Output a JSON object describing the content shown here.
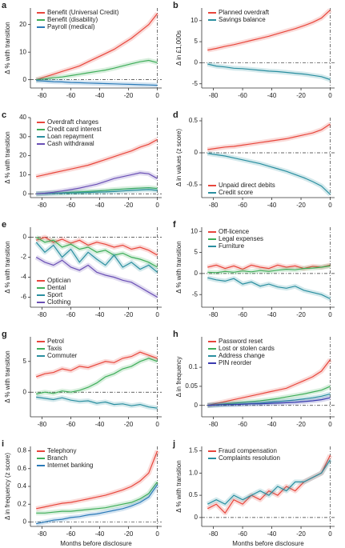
{
  "chart_data": [
    {
      "type": "line",
      "label": "a",
      "ylabel": "Δ % with transition",
      "legend": "upper left",
      "x": [
        -84,
        -78,
        -72,
        -66,
        -60,
        -54,
        -48,
        -42,
        -36,
        -30,
        -24,
        -18,
        -12,
        -6,
        0
      ],
      "xlim": [
        -88,
        3
      ],
      "xticks": [
        -80,
        -60,
        -40,
        -20,
        0
      ],
      "ylim": [
        -3,
        26
      ],
      "yticks": [
        0,
        10,
        20
      ],
      "series": [
        {
          "name": "Benefit (Universal Credit)",
          "color": "#e8463c",
          "values": [
            0,
            1,
            2,
            3,
            4,
            5,
            6.5,
            8,
            9.5,
            11,
            13,
            15,
            17.5,
            20,
            24
          ]
        },
        {
          "name": "Benefit (disability)",
          "color": "#3fae5a",
          "values": [
            0,
            0.3,
            0.7,
            1,
            1.5,
            2,
            2.5,
            3,
            3.5,
            4.2,
            5,
            5.8,
            6.5,
            7,
            6.2
          ]
        },
        {
          "name": "Payroll (medical)",
          "color": "#2a7ab8",
          "values": [
            -0.3,
            -0.5,
            -0.7,
            -0.8,
            -1,
            -1.1,
            -1.2,
            -1.3,
            -1.4,
            -1.5,
            -1.6,
            -1.7,
            -1.8,
            -1.9,
            -2
          ]
        }
      ]
    },
    {
      "type": "line",
      "label": "b",
      "ylabel": "Δ in £1,000s",
      "legend": "upper left",
      "x": [
        -84,
        -78,
        -72,
        -66,
        -60,
        -54,
        -48,
        -42,
        -36,
        -30,
        -24,
        -18,
        -12,
        -6,
        0
      ],
      "xlim": [
        -88,
        3
      ],
      "xticks": [
        -80,
        -60,
        -40,
        -20,
        0
      ],
      "ylim": [
        -6,
        13
      ],
      "yticks": [
        -5,
        0,
        5,
        10
      ],
      "series": [
        {
          "name": "Planned overdraft",
          "color": "#e8463c",
          "values": [
            3,
            3.4,
            3.9,
            4.3,
            4.8,
            5.3,
            5.8,
            6.3,
            6.9,
            7.5,
            8.1,
            8.8,
            9.6,
            10.6,
            12.5
          ]
        },
        {
          "name": "Savings balance",
          "color": "#2a8fa0",
          "values": [
            -0.3,
            -0.8,
            -1,
            -1.3,
            -1.4,
            -1.6,
            -1.8,
            -2,
            -2.1,
            -2.3,
            -2.5,
            -2.7,
            -3,
            -3.3,
            -4
          ]
        }
      ]
    },
    {
      "type": "line",
      "label": "c",
      "ylabel": "Δ % with transition",
      "legend": "upper left",
      "x": [
        -84,
        -78,
        -72,
        -66,
        -60,
        -54,
        -48,
        -42,
        -36,
        -30,
        -24,
        -18,
        -12,
        -6,
        0
      ],
      "xlim": [
        -88,
        3
      ],
      "xticks": [
        -80,
        -60,
        -40,
        -20,
        0
      ],
      "ylim": [
        -2,
        40
      ],
      "yticks": [
        0,
        10,
        20,
        30,
        40
      ],
      "series": [
        {
          "name": "Overdraft charges",
          "color": "#e8463c",
          "values": [
            9,
            10,
            11,
            12,
            13,
            14,
            15,
            16.5,
            18,
            19.5,
            21,
            22.5,
            24.5,
            26,
            28.5
          ]
        },
        {
          "name": "Credit card interest",
          "color": "#3fae5a",
          "values": [
            0,
            0.2,
            0.4,
            0.5,
            0.8,
            1,
            1.2,
            1.5,
            1.8,
            2.2,
            2.5,
            2.8,
            3,
            3.2,
            2.8
          ]
        },
        {
          "name": "Loan repayment",
          "color": "#2a8fa0",
          "values": [
            0,
            0.1,
            0.2,
            0.3,
            0.4,
            0.5,
            0.7,
            0.9,
            1,
            1.2,
            1.5,
            1.8,
            2,
            2.2,
            1.8
          ]
        },
        {
          "name": "Cash withdrawal",
          "color": "#6a4fb5",
          "values": [
            0,
            0.3,
            0.8,
            1.5,
            2.2,
            3,
            4,
            5,
            6.5,
            8,
            9,
            10,
            11,
            10.5,
            8
          ]
        }
      ]
    },
    {
      "type": "line",
      "label": "d",
      "ylabel": "Δ in values (z score)",
      "legend": "lower left",
      "x": [
        -84,
        -78,
        -72,
        -66,
        -60,
        -54,
        -48,
        -42,
        -36,
        -30,
        -24,
        -18,
        -12,
        -6,
        0
      ],
      "xlim": [
        -88,
        3
      ],
      "xticks": [
        -80,
        -60,
        -40,
        -20,
        0
      ],
      "ylim": [
        -0.7,
        0.55
      ],
      "yticks": [
        -0.5,
        0,
        0.5
      ],
      "series": [
        {
          "name": "Unpaid direct debits",
          "color": "#e8463c",
          "values": [
            0.05,
            0.07,
            0.09,
            0.1,
            0.12,
            0.14,
            0.16,
            0.18,
            0.2,
            0.22,
            0.25,
            0.28,
            0.31,
            0.36,
            0.45
          ]
        },
        {
          "name": "Credit score",
          "color": "#2a8fa0",
          "values": [
            -0.01,
            -0.03,
            -0.05,
            -0.08,
            -0.11,
            -0.14,
            -0.17,
            -0.21,
            -0.25,
            -0.29,
            -0.34,
            -0.39,
            -0.45,
            -0.52,
            -0.65
          ]
        }
      ]
    },
    {
      "type": "line",
      "label": "e",
      "ylabel": "Δ % with transition",
      "legend": "lower left",
      "x": [
        -84,
        -78,
        -72,
        -66,
        -60,
        -54,
        -48,
        -42,
        -36,
        -30,
        -24,
        -18,
        -12,
        -6,
        0
      ],
      "xlim": [
        -88,
        3
      ],
      "xticks": [
        -80,
        -60,
        -40,
        -20,
        0
      ],
      "ylim": [
        -7,
        1
      ],
      "yticks": [
        -6,
        -4,
        -2,
        0
      ],
      "series": [
        {
          "name": "Optician",
          "color": "#e8463c",
          "values": [
            -0.3,
            0,
            -0.5,
            -0.2,
            -0.6,
            -0.3,
            -0.8,
            -0.5,
            -0.7,
            -1,
            -0.8,
            -1.2,
            -1,
            -1.3,
            -1.8
          ]
        },
        {
          "name": "Dental",
          "color": "#3fae5a",
          "values": [
            0,
            -0.5,
            -0.3,
            -1,
            -0.7,
            -1.2,
            -1,
            -1.5,
            -1.3,
            -1.8,
            -1.6,
            -2,
            -2.2,
            -2.5,
            -3
          ]
        },
        {
          "name": "Sport",
          "color": "#2a8fa0",
          "values": [
            -0.5,
            -1.5,
            -0.8,
            -2,
            -1.2,
            -2.5,
            -1.5,
            -2.2,
            -2.8,
            -1.8,
            -3,
            -2.5,
            -3.2,
            -2.8,
            -3.5
          ]
        },
        {
          "name": "Clothing",
          "color": "#6a4fb5",
          "values": [
            -2,
            -2.5,
            -2.8,
            -2.3,
            -3,
            -3.3,
            -2.8,
            -3.5,
            -3.8,
            -4,
            -4.3,
            -4.5,
            -5,
            -5.5,
            -6
          ]
        }
      ]
    },
    {
      "type": "line",
      "label": "f",
      "ylabel": "Δ % with transition",
      "legend": "upper left",
      "x": [
        -84,
        -78,
        -72,
        -66,
        -60,
        -54,
        -48,
        -42,
        -36,
        -30,
        -24,
        -18,
        -12,
        -6,
        0
      ],
      "xlim": [
        -88,
        3
      ],
      "xticks": [
        -80,
        -60,
        -40,
        -20,
        0
      ],
      "ylim": [
        -8,
        11
      ],
      "yticks": [
        -5,
        0,
        5,
        10
      ],
      "series": [
        {
          "name": "Off-licence",
          "color": "#e8463c",
          "values": [
            1.5,
            2,
            1.2,
            1.8,
            1,
            2,
            1.5,
            1.2,
            2,
            1.5,
            1.8,
            1.2,
            1.7,
            1.5,
            2
          ]
        },
        {
          "name": "Legal expenses",
          "color": "#3fae5a",
          "values": [
            0.3,
            0.2,
            0.5,
            0.3,
            0.6,
            0.4,
            0.7,
            0.5,
            0.8,
            1,
            0.9,
            1.2,
            1.3,
            1.5,
            1.8
          ]
        },
        {
          "name": "Furniture",
          "color": "#2a8fa0",
          "values": [
            -1,
            -1.5,
            -1.8,
            -1.2,
            -2.5,
            -2,
            -3,
            -2.5,
            -3.2,
            -3.5,
            -3,
            -4,
            -4.5,
            -5,
            -6
          ]
        }
      ]
    },
    {
      "type": "line",
      "label": "g",
      "ylabel": "Δ % with transition",
      "legend": "upper left",
      "x": [
        -84,
        -78,
        -72,
        -66,
        -60,
        -54,
        -48,
        -42,
        -36,
        -30,
        -24,
        -18,
        -12,
        -6,
        0
      ],
      "xlim": [
        -88,
        3
      ],
      "xticks": [
        -80,
        -60,
        -40,
        -20,
        0
      ],
      "ylim": [
        -4,
        9
      ],
      "yticks": [
        0,
        5
      ],
      "series": [
        {
          "name": "Petrol",
          "color": "#e8463c",
          "values": [
            2.5,
            3,
            3.2,
            3.8,
            3.5,
            4.2,
            4,
            4.5,
            5,
            4.8,
            5.5,
            5.8,
            6.5,
            6,
            5.5
          ]
        },
        {
          "name": "Taxis",
          "color": "#3fae5a",
          "values": [
            -0.3,
            0,
            -0.2,
            0.2,
            0,
            0.3,
            0.8,
            1.5,
            2.5,
            3,
            3.8,
            4.2,
            5,
            5.5,
            5
          ]
        },
        {
          "name": "Commuter",
          "color": "#2a8fa0",
          "values": [
            -0.8,
            -1,
            -1.2,
            -0.9,
            -1.3,
            -1.5,
            -1.4,
            -1.8,
            -1.6,
            -2,
            -1.9,
            -2.2,
            -2,
            -2.4,
            -2.6
          ]
        }
      ]
    },
    {
      "type": "line",
      "label": "h",
      "ylabel": "Δ in frequency",
      "legend": "upper left",
      "x": [
        -84,
        -78,
        -72,
        -66,
        -60,
        -54,
        -48,
        -42,
        -36,
        -30,
        -24,
        -18,
        -12,
        -6,
        0
      ],
      "xlim": [
        -88,
        3
      ],
      "xticks": [
        -80,
        -60,
        -40,
        -20,
        0
      ],
      "ylim": [
        -0.03,
        0.18
      ],
      "yticks": [
        0,
        0.05,
        0.1
      ],
      "series": [
        {
          "name": "Password reset",
          "color": "#e8463c",
          "values": [
            0,
            0.005,
            0.01,
            0.015,
            0.02,
            0.025,
            0.03,
            0.035,
            0.04,
            0.045,
            0.055,
            0.065,
            0.075,
            0.09,
            0.12
          ]
        },
        {
          "name": "Lost or stolen cards",
          "color": "#3fae5a",
          "values": [
            0,
            0.002,
            0.004,
            0.006,
            0.008,
            0.01,
            0.012,
            0.015,
            0.018,
            0.022,
            0.026,
            0.03,
            0.035,
            0.04,
            0.05
          ]
        },
        {
          "name": "Address change",
          "color": "#2a8fa0",
          "values": [
            0,
            0.001,
            0.002,
            0.003,
            0.004,
            0.005,
            0.006,
            0.008,
            0.01,
            0.012,
            0.014,
            0.017,
            0.02,
            0.024,
            0.03
          ]
        },
        {
          "name": "PIN reorder",
          "color": "#3a3ab0",
          "values": [
            0,
            0.001,
            0.002,
            0.002,
            0.003,
            0.004,
            0.004,
            0.005,
            0.006,
            0.007,
            0.008,
            0.01,
            0.012,
            0.015,
            0.02
          ]
        }
      ]
    },
    {
      "type": "line",
      "label": "i",
      "ylabel": "Δ in frequency (z score)",
      "xlabel": "Months before disclosure",
      "legend": "upper left",
      "x": [
        -84,
        -78,
        -72,
        -66,
        -60,
        -54,
        -48,
        -42,
        -36,
        -30,
        -24,
        -18,
        -12,
        -6,
        0
      ],
      "xlim": [
        -88,
        3
      ],
      "xticks": [
        -80,
        -60,
        -40,
        -20,
        0
      ],
      "ylim": [
        -0.05,
        0.85
      ],
      "yticks": [
        0,
        0.2,
        0.4,
        0.6,
        0.8
      ],
      "series": [
        {
          "name": "Telephony",
          "color": "#e8463c",
          "values": [
            0.15,
            0.17,
            0.19,
            0.21,
            0.22,
            0.24,
            0.26,
            0.28,
            0.3,
            0.33,
            0.36,
            0.4,
            0.46,
            0.55,
            0.8
          ]
        },
        {
          "name": "Branch",
          "color": "#3fae5a",
          "values": [
            0.1,
            0.1,
            0.11,
            0.12,
            0.12,
            0.13,
            0.14,
            0.15,
            0.16,
            0.18,
            0.2,
            0.22,
            0.26,
            0.32,
            0.45
          ]
        },
        {
          "name": "Internet banking",
          "color": "#2a7ab8",
          "values": [
            -0.02,
            0,
            0.02,
            0.03,
            0.05,
            0.06,
            0.08,
            0.09,
            0.11,
            0.13,
            0.15,
            0.18,
            0.22,
            0.28,
            0.42
          ]
        }
      ]
    },
    {
      "type": "line",
      "label": "j",
      "ylabel": "Δ % with transition",
      "xlabel": "Months before disclosure",
      "legend": "upper left",
      "x": [
        -84,
        -78,
        -72,
        -66,
        -60,
        -54,
        -48,
        -42,
        -36,
        -30,
        -24,
        -18,
        -12,
        -6,
        0
      ],
      "xlim": [
        -88,
        3
      ],
      "xticks": [
        -80,
        -60,
        -40,
        -20,
        0
      ],
      "ylim": [
        -0.2,
        1.6
      ],
      "yticks": [
        0,
        0.5,
        {
          "value": 1,
          "label": "1.0"
        },
        1.5
      ],
      "series": [
        {
          "name": "Fraud compensation",
          "color": "#e8463c",
          "values": [
            0.2,
            0.3,
            0.1,
            0.4,
            0.3,
            0.5,
            0.4,
            0.6,
            0.5,
            0.7,
            0.6,
            0.8,
            0.9,
            1,
            1.4
          ]
        },
        {
          "name": "Complaints resolution",
          "color": "#2a8fa0",
          "values": [
            0.3,
            0.4,
            0.3,
            0.5,
            0.4,
            0.5,
            0.6,
            0.5,
            0.7,
            0.6,
            0.8,
            0.8,
            0.9,
            1,
            1.3
          ]
        }
      ]
    }
  ]
}
